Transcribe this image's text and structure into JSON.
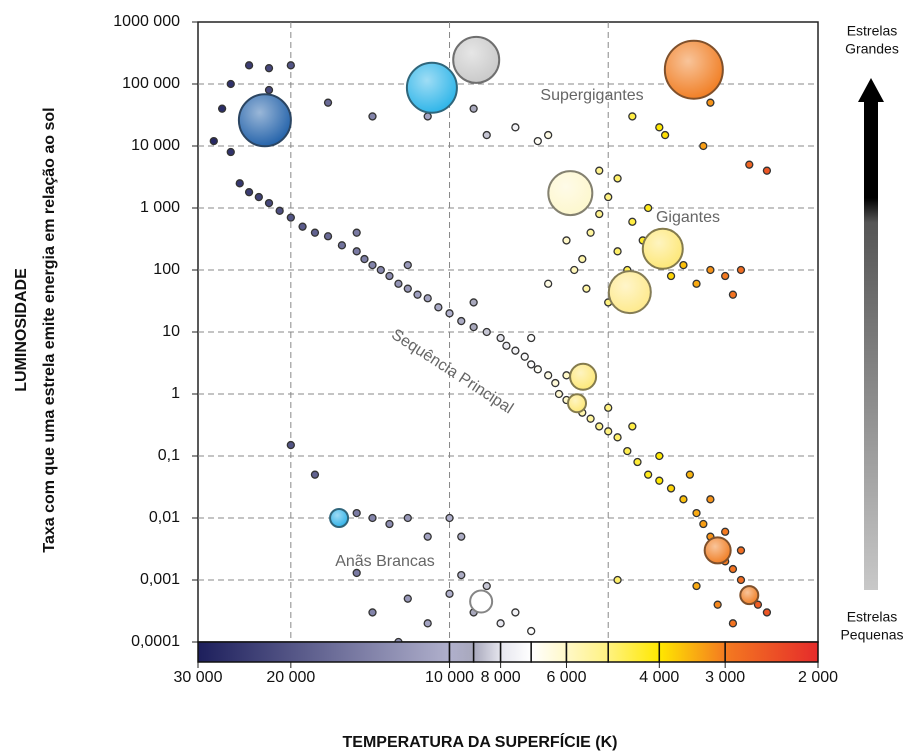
{
  "chart_data": {
    "type": "scatter",
    "x_label": "TEMPERATURA DA SUPERFÍCIE (K)",
    "y_label": "LUMINOSIDADE",
    "y_sublabel": "Taxa com que uma estrela emite energia em relação ao sol",
    "xscale": "log",
    "yscale": "log",
    "xlim": [
      30000,
      2000
    ],
    "ylim": [
      0.0001,
      1000000
    ],
    "xticks": [
      {
        "value": 30000,
        "label": "30 000"
      },
      {
        "value": 20000,
        "label": "20 000"
      },
      {
        "value": 10000,
        "label": "10 000"
      },
      {
        "value": 8000,
        "label": "8 000"
      },
      {
        "value": 6000,
        "label": "6 000"
      },
      {
        "value": 4000,
        "label": "4 000"
      },
      {
        "value": 3000,
        "label": "3 000"
      },
      {
        "value": 2000,
        "label": "2 000"
      }
    ],
    "yticks": [
      {
        "value": 1000000,
        "label": "1000 000"
      },
      {
        "value": 100000,
        "label": "100 000"
      },
      {
        "value": 10000,
        "label": "10 000"
      },
      {
        "value": 1000,
        "label": "1 000"
      },
      100,
      10,
      1,
      {
        "value": 0.1,
        "label": "0,1"
      },
      {
        "value": 0.01,
        "label": "0,01"
      },
      {
        "value": 0.001,
        "label": "0,001"
      },
      {
        "value": 0.0001,
        "label": "0,0001"
      }
    ],
    "xgrid": [
      20000,
      10000,
      5000
    ],
    "grid": true,
    "colorscale": [
      {
        "value": 30000,
        "color": "#1d1f5c"
      },
      {
        "value": 10000,
        "color": "#b0b0cc"
      },
      {
        "value": 9000,
        "color": "#a8a8bc"
      },
      {
        "value": 8000,
        "color": "#e6e6ee"
      },
      {
        "value": 7000,
        "color": "#ffffff"
      },
      {
        "value": 6000,
        "color": "#fff8c8"
      },
      {
        "value": 5000,
        "color": "#fff280"
      },
      {
        "value": 4000,
        "color": "#ffe800"
      },
      {
        "value": 3000,
        "color": "#f47a20"
      },
      {
        "value": 2000,
        "color": "#e52b2b"
      }
    ],
    "side_labels": {
      "top": [
        "Estrelas",
        "Grandes"
      ],
      "bottom": [
        "Estrelas",
        "Pequenas"
      ]
    },
    "series": [
      {
        "name": "Supergigantes",
        "x": [
          17000,
          14000,
          11000,
          9000,
          8500,
          7500,
          6500,
          6800,
          4500,
          3200,
          22000
        ],
        "values": [
          50000,
          30000,
          30000,
          40000,
          15000,
          20000,
          15000,
          12000,
          30000,
          50000,
          80000
        ],
        "stars": [
          {
            "x": 22400,
            "value": 26000,
            "size": 26,
            "color": "#1f5fa8"
          },
          {
            "x": 10800,
            "value": 87000,
            "size": 25,
            "color": "#29b3e8"
          },
          {
            "x": 8900,
            "value": 245000,
            "size": 23,
            "color": "#c8c8c8"
          },
          {
            "x": 3440,
            "value": 170000,
            "size": 29,
            "color": "#f07b1f"
          }
        ]
      },
      {
        "name": "Gigantes",
        "x": [
          6000,
          5800,
          5600,
          5400,
          5200,
          5000,
          4800,
          4600,
          4500,
          4300,
          4200,
          4000,
          3800,
          3600,
          3400,
          3200,
          3000,
          2900,
          2800,
          5500,
          5000,
          6500,
          3300,
          4000,
          3900,
          5200,
          4800,
          2700,
          2500
        ],
        "values": [
          300,
          100,
          150,
          400,
          800,
          1500,
          200,
          100,
          600,
          300,
          1000,
          150,
          80,
          120,
          60,
          100,
          80,
          40,
          100,
          50,
          30,
          60,
          10000,
          20000,
          15000,
          4000,
          3000,
          5000,
          4000
        ],
        "stars": [
          {
            "x": 5900,
            "value": 1740,
            "size": 22,
            "color": "#fdf7cc"
          },
          {
            "x": 3940,
            "value": 220,
            "size": 20,
            "color": "#fde774"
          },
          {
            "x": 4550,
            "value": 44,
            "size": 21,
            "color": "#fee98a"
          }
        ]
      },
      {
        "name": "Sequência Principal",
        "x": [
          27000,
          26000,
          24000,
          22000,
          20000,
          28000,
          26000,
          25000,
          24000,
          23000,
          22000,
          21000,
          20000,
          19000,
          18000,
          17000,
          16000,
          15000,
          14500,
          14000,
          13500,
          13000,
          12500,
          12000,
          11500,
          11000,
          10500,
          10000,
          9500,
          9000,
          8500,
          8000,
          7800,
          7500,
          7200,
          7000,
          6800,
          6500,
          6300,
          6200,
          6000,
          5800,
          5600,
          5400,
          5200,
          5000,
          4800,
          4600,
          4400,
          4200,
          4000,
          3800,
          3600,
          3400,
          3300,
          3200,
          3100,
          3000,
          2900,
          2800,
          2700,
          2600,
          2500,
          15000,
          12000,
          9000,
          7000,
          6000,
          5000,
          4500,
          4000,
          3500,
          3200,
          3000,
          2800,
          3400,
          3100,
          2900,
          4800
        ],
        "values": [
          40000,
          100000,
          200000,
          180000,
          200000,
          12000,
          8000,
          2500,
          1800,
          1500,
          1200,
          900,
          700,
          500,
          400,
          350,
          250,
          200,
          150,
          120,
          100,
          80,
          60,
          50,
          40,
          35,
          25,
          20,
          15,
          12,
          10,
          8,
          6,
          5,
          4,
          3,
          2.5,
          2,
          1.5,
          1,
          0.8,
          0.6,
          0.5,
          0.4,
          0.3,
          0.25,
          0.2,
          0.12,
          0.08,
          0.05,
          0.04,
          0.03,
          0.02,
          0.012,
          0.008,
          0.005,
          0.003,
          0.002,
          0.0015,
          0.001,
          0.0007,
          0.0004,
          0.0003,
          400,
          120,
          30,
          8,
          2,
          0.6,
          0.3,
          0.1,
          0.05,
          0.02,
          0.006,
          0.003,
          0.0008,
          0.0004,
          0.0002,
          0.001
        ],
        "stars": [
          {
            "x": 5580,
            "value": 1.9,
            "size": 13,
            "color": "#fde774"
          },
          {
            "x": 5730,
            "value": 0.71,
            "size": 9,
            "color": "#fde774"
          },
          {
            "x": 3100,
            "value": 0.003,
            "size": 13,
            "color": "#f07b1f"
          },
          {
            "x": 2700,
            "value": 0.00057,
            "size": 9,
            "color": "#f07b1f"
          }
        ]
      },
      {
        "name": "Anãs Brancas",
        "x": [
          20000,
          18000,
          15000,
          14000,
          13000,
          12000,
          11000,
          10000,
          9500,
          15000,
          14000,
          12000,
          11000,
          10000,
          9000,
          8500,
          12500,
          9500,
          8000,
          7500,
          7000
        ],
        "values": [
          0.15,
          0.05,
          0.012,
          0.01,
          0.008,
          0.01,
          0.005,
          0.01,
          0.005,
          0.0013,
          0.0003,
          0.0005,
          0.0002,
          0.0006,
          0.0003,
          0.0008,
          0.0001,
          0.0012,
          0.0002,
          0.0003,
          0.00015
        ],
        "stars": [
          {
            "x": 16200,
            "value": 0.01,
            "size": 9,
            "color": "#2ab0e8"
          },
          {
            "x": 8710,
            "value": 0.00045,
            "size": 11,
            "color": "#ffffff"
          }
        ]
      }
    ]
  }
}
